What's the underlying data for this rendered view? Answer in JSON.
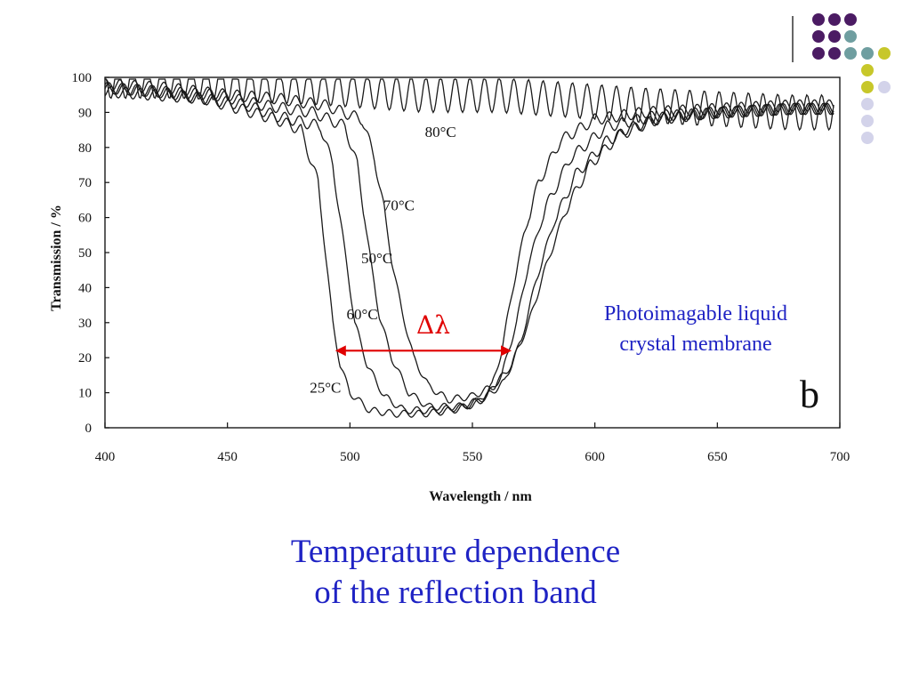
{
  "slide": {
    "caption_line1": "Temperature dependence",
    "caption_line2": "of the reflection band",
    "membrane_label_line1": "Photoimagable liquid",
    "membrane_label_line2": "crystal membrane",
    "panel_letter": "b",
    "delta_label": "Δλ",
    "accent_colors": {
      "purple": "#4b1b63",
      "teal": "#6f9ea0",
      "olive": "#c7c72a",
      "lavender": "#d3d3ea",
      "caption_blue": "#1f23c4",
      "arrow_red": "#e00000"
    }
  },
  "chart_data": {
    "type": "line",
    "xlabel": "Wavelength / nm",
    "ylabel": "Transmission / %",
    "xlim": [
      400,
      700
    ],
    "ylim": [
      0,
      100
    ],
    "x_ticks": [
      "400",
      "450",
      "500",
      "550",
      "600",
      "650",
      "700"
    ],
    "y_ticks": [
      "0",
      "10",
      "20",
      "30",
      "40",
      "50",
      "60",
      "70",
      "80",
      "90",
      "100"
    ],
    "grid": false,
    "annotations": [
      {
        "text": "80°C",
        "x": 537,
        "y": 83
      },
      {
        "text": "70°C",
        "x": 520,
        "y": 62
      },
      {
        "text": "50°C",
        "x": 511,
        "y": 47
      },
      {
        "text": "60°C",
        "x": 505,
        "y": 31
      },
      {
        "text": "25°C",
        "x": 490,
        "y": 10
      }
    ],
    "delta_arrow": {
      "x_start": 494,
      "x_end": 566,
      "y": 22
    },
    "series": [
      {
        "values": [
          [
            400,
            96
          ],
          [
            420,
            95
          ],
          [
            440,
            94
          ],
          [
            455,
            91
          ],
          [
            470,
            88
          ],
          [
            480,
            85
          ],
          [
            487,
            70
          ],
          [
            490,
            50
          ],
          [
            493,
            30
          ],
          [
            496,
            18
          ],
          [
            500,
            10
          ],
          [
            508,
            5
          ],
          [
            518,
            4
          ],
          [
            530,
            4
          ],
          [
            542,
            5
          ],
          [
            552,
            7
          ],
          [
            558,
            12
          ],
          [
            562,
            22
          ],
          [
            566,
            38
          ],
          [
            571,
            55
          ],
          [
            577,
            70
          ],
          [
            586,
            82
          ],
          [
            600,
            88
          ],
          [
            620,
            90
          ],
          [
            650,
            91
          ],
          [
            680,
            92
          ],
          [
            698,
            92
          ]
        ]
      },
      {
        "values": [
          [
            400,
            97
          ],
          [
            420,
            96
          ],
          [
            440,
            94
          ],
          [
            458,
            92
          ],
          [
            470,
            89
          ],
          [
            488,
            86
          ],
          [
            493,
            75
          ],
          [
            496,
            60
          ],
          [
            499,
            45
          ],
          [
            502,
            30
          ],
          [
            507,
            18
          ],
          [
            514,
            9
          ],
          [
            522,
            5
          ],
          [
            535,
            5
          ],
          [
            547,
            6
          ],
          [
            556,
            9
          ],
          [
            562,
            15
          ],
          [
            568,
            30
          ],
          [
            573,
            47
          ],
          [
            580,
            63
          ],
          [
            590,
            77
          ],
          [
            605,
            86
          ],
          [
            625,
            89
          ],
          [
            650,
            90
          ],
          [
            680,
            91
          ],
          [
            698,
            91
          ]
        ]
      },
      {
        "values": [
          [
            400,
            97
          ],
          [
            420,
            96
          ],
          [
            445,
            95
          ],
          [
            465,
            92
          ],
          [
            485,
            90
          ],
          [
            498,
            86
          ],
          [
            503,
            75
          ],
          [
            506,
            60
          ],
          [
            509,
            45
          ],
          [
            512,
            32
          ],
          [
            517,
            20
          ],
          [
            524,
            10
          ],
          [
            532,
            6
          ],
          [
            544,
            6
          ],
          [
            554,
            8
          ],
          [
            563,
            13
          ],
          [
            570,
            25
          ],
          [
            576,
            42
          ],
          [
            583,
            58
          ],
          [
            592,
            72
          ],
          [
            605,
            82
          ],
          [
            625,
            88
          ],
          [
            650,
            90
          ],
          [
            680,
            91
          ],
          [
            698,
            91
          ]
        ]
      },
      {
        "values": [
          [
            400,
            98
          ],
          [
            425,
            97
          ],
          [
            450,
            95
          ],
          [
            470,
            94
          ],
          [
            490,
            92
          ],
          [
            505,
            88
          ],
          [
            510,
            77
          ],
          [
            514,
            62
          ],
          [
            517,
            48
          ],
          [
            521,
            34
          ],
          [
            526,
            20
          ],
          [
            532,
            12
          ],
          [
            540,
            8
          ],
          [
            550,
            9
          ],
          [
            559,
            12
          ],
          [
            566,
            18
          ],
          [
            573,
            30
          ],
          [
            580,
            46
          ],
          [
            588,
            62
          ],
          [
            598,
            75
          ],
          [
            612,
            85
          ],
          [
            630,
            89
          ],
          [
            655,
            90
          ],
          [
            680,
            91
          ],
          [
            698,
            91
          ]
        ]
      },
      {
        "values": [
          [
            400,
            99
          ],
          [
            430,
            99
          ],
          [
            460,
            98
          ],
          [
            490,
            97
          ],
          [
            510,
            96
          ],
          [
            530,
            95
          ],
          [
            560,
            95
          ],
          [
            580,
            94
          ],
          [
            600,
            93
          ],
          [
            620,
            92
          ],
          [
            650,
            91
          ],
          [
            680,
            90
          ],
          [
            698,
            90
          ]
        ]
      }
    ]
  }
}
